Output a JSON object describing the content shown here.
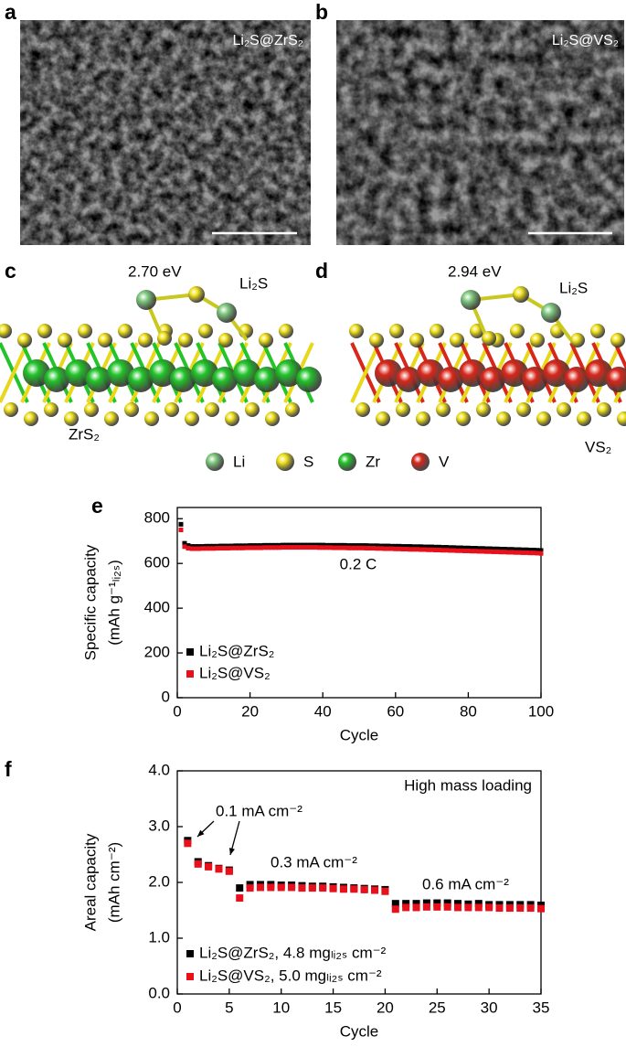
{
  "panel_labels": [
    "a",
    "b",
    "c",
    "d",
    "e",
    "f"
  ],
  "images": [
    {
      "label": "Li₂S@ZrS₂"
    },
    {
      "label": "Li₂S@VS₂"
    }
  ],
  "structures": [
    {
      "energy": "2.70 eV",
      "adsorbate": "Li₂S",
      "substrate": "ZrS₂"
    },
    {
      "energy": "2.94 eV",
      "adsorbate": "Li₂S",
      "substrate": "VS₂"
    }
  ],
  "atom_legend": [
    {
      "name": "Li",
      "color": "#7fc97f"
    },
    {
      "name": "S",
      "color": "#f2e21a"
    },
    {
      "name": "Zr",
      "color": "#22c42a"
    },
    {
      "name": "V",
      "color": "#d8271a"
    }
  ],
  "chart_data": [
    {
      "type": "scatter",
      "xlabel": "Cycle",
      "ylabel": [
        "Specific capacity",
        "(mAh g⁻¹ₗᵢ₂ₛ)"
      ],
      "annotations": [
        "0.2 C"
      ],
      "legend": "lower left",
      "xlim": [
        0,
        100
      ],
      "xticks": [
        0,
        20,
        40,
        60,
        80,
        100
      ],
      "ylim": [
        0,
        850
      ],
      "yticks": [
        0,
        200,
        400,
        600,
        800
      ],
      "x": [
        1,
        2,
        3,
        4,
        5,
        6,
        7,
        8,
        9,
        10,
        11,
        12,
        13,
        14,
        15,
        16,
        17,
        18,
        19,
        20,
        21,
        22,
        23,
        24,
        25,
        26,
        27,
        28,
        29,
        30,
        31,
        32,
        33,
        34,
        35,
        36,
        37,
        38,
        39,
        40,
        41,
        42,
        43,
        44,
        45,
        46,
        47,
        48,
        49,
        50,
        51,
        52,
        53,
        54,
        55,
        56,
        57,
        58,
        59,
        60,
        61,
        62,
        63,
        64,
        65,
        66,
        67,
        68,
        69,
        70,
        71,
        72,
        73,
        74,
        75,
        76,
        77,
        78,
        79,
        80,
        81,
        82,
        83,
        84,
        85,
        86,
        87,
        88,
        89,
        90,
        91,
        92,
        93,
        94,
        95,
        96,
        97,
        98,
        99,
        100
      ],
      "series": [
        {
          "name": "Li₂S@ZrS₂",
          "color": "#000000",
          "values": [
            775,
            690,
            680,
            676,
            676,
            676,
            676,
            677,
            677,
            677,
            677,
            678,
            678,
            678,
            678,
            679,
            679,
            679,
            679,
            680,
            680,
            680,
            680,
            681,
            681,
            681,
            681,
            681,
            682,
            682,
            682,
            682,
            682,
            682,
            682,
            682,
            682,
            682,
            682,
            682,
            681,
            681,
            681,
            681,
            681,
            681,
            680,
            680,
            680,
            680,
            680,
            680,
            679,
            679,
            679,
            678,
            678,
            678,
            677,
            677,
            677,
            676,
            676,
            676,
            675,
            675,
            675,
            674,
            674,
            674,
            673,
            673,
            672,
            672,
            671,
            671,
            670,
            670,
            669,
            669,
            668,
            668,
            667,
            667,
            666,
            666,
            665,
            665,
            664,
            664,
            663,
            663,
            662,
            662,
            661,
            661,
            660,
            660,
            659,
            658
          ]
        },
        {
          "name": "Li₂S@VS₂",
          "color": "#e8101a",
          "values": [
            750,
            675,
            668,
            666,
            666,
            666,
            667,
            667,
            667,
            667,
            668,
            668,
            668,
            668,
            669,
            669,
            669,
            669,
            670,
            670,
            670,
            670,
            670,
            671,
            671,
            671,
            671,
            671,
            672,
            672,
            672,
            672,
            672,
            672,
            672,
            672,
            672,
            672,
            671,
            671,
            671,
            671,
            670,
            670,
            670,
            670,
            669,
            669,
            669,
            669,
            669,
            668,
            668,
            668,
            667,
            667,
            666,
            666,
            666,
            665,
            665,
            664,
            664,
            663,
            663,
            663,
            662,
            662,
            661,
            661,
            660,
            660,
            659,
            659,
            658,
            658,
            657,
            657,
            656,
            656,
            655,
            655,
            654,
            654,
            653,
            653,
            652,
            652,
            651,
            651,
            650,
            650,
            649,
            649,
            648,
            648,
            647,
            647,
            646,
            645
          ]
        }
      ]
    },
    {
      "type": "scatter",
      "xlabel": "Cycle",
      "ylabel": [
        "Areal capacity",
        "(mAh cm⁻²)"
      ],
      "annotations": [
        "High mass loading",
        "0.1 mA cm⁻²",
        "0.3 mA cm⁻²",
        "0.6 mA cm⁻²"
      ],
      "legend": "lower left",
      "xlim": [
        0,
        35
      ],
      "xticks": [
        0,
        5,
        10,
        15,
        20,
        25,
        30,
        35
      ],
      "ylim": [
        0,
        4
      ],
      "yticks": [
        {
          "value": 0,
          "label": "0.0"
        },
        {
          "value": 1,
          "label": "1.0"
        },
        {
          "value": 2,
          "label": "2.0"
        },
        {
          "value": 3,
          "label": "3.0"
        },
        {
          "value": 4,
          "label": "4.0"
        }
      ],
      "x": [
        1,
        2,
        3,
        4,
        5,
        6,
        7,
        8,
        9,
        10,
        11,
        12,
        13,
        14,
        15,
        16,
        17,
        18,
        19,
        20,
        21,
        22,
        23,
        24,
        25,
        26,
        27,
        28,
        29,
        30,
        31,
        32,
        33,
        34,
        35
      ],
      "series": [
        {
          "name": "Li₂S@ZrS₂, 4.8 mgₗᵢ₂ₛ cm⁻²",
          "color": "#000000",
          "values": [
            2.75,
            2.37,
            2.3,
            2.25,
            2.22,
            1.9,
            1.96,
            1.96,
            1.96,
            1.95,
            1.95,
            1.94,
            1.93,
            1.93,
            1.92,
            1.91,
            1.9,
            1.89,
            1.88,
            1.87,
            1.62,
            1.62,
            1.62,
            1.63,
            1.63,
            1.63,
            1.62,
            1.61,
            1.62,
            1.6,
            1.6,
            1.6,
            1.6,
            1.6,
            1.59
          ]
        },
        {
          "name": "Li₂S@VS₂, 5.0 mgₗᵢ₂ₛ cm⁻²",
          "color": "#e8101a",
          "values": [
            2.7,
            2.33,
            2.28,
            2.24,
            2.2,
            1.72,
            1.9,
            1.91,
            1.91,
            1.91,
            1.91,
            1.9,
            1.9,
            1.9,
            1.89,
            1.88,
            1.88,
            1.87,
            1.86,
            1.84,
            1.52,
            1.55,
            1.55,
            1.56,
            1.56,
            1.56,
            1.55,
            1.55,
            1.55,
            1.55,
            1.54,
            1.54,
            1.54,
            1.54,
            1.53
          ]
        }
      ]
    }
  ]
}
